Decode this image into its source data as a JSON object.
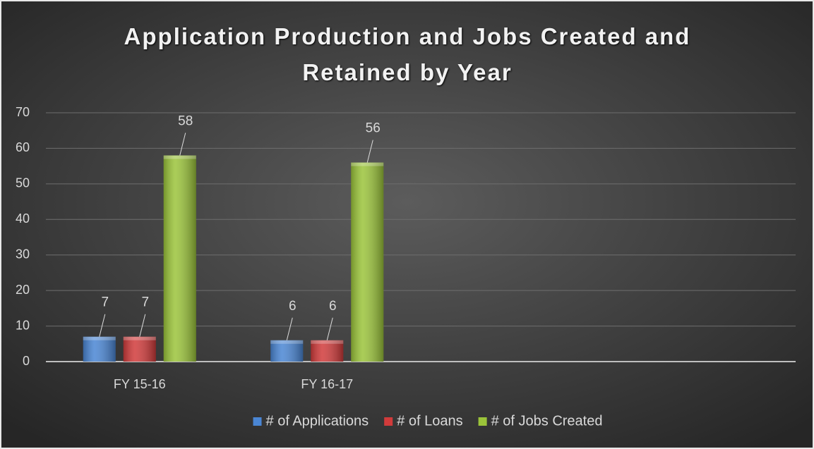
{
  "chart_data": {
    "type": "bar",
    "title": "Application Production and Jobs Created and Retained by Year",
    "categories": [
      "FY 15-16",
      "FY 16-17",
      null,
      null
    ],
    "series": [
      {
        "name": "# of Applications",
        "color": "#4a86d4",
        "values": [
          7,
          6,
          null,
          null
        ]
      },
      {
        "name": "# of Loans",
        "color": "#d13b3b",
        "values": [
          7,
          6,
          null,
          null
        ]
      },
      {
        "name": "# of Jobs Created",
        "color": "#9bc43a",
        "values": [
          58,
          56,
          null,
          null
        ]
      }
    ],
    "ylim": [
      0,
      70
    ],
    "yticks": [
      0,
      10,
      20,
      30,
      40,
      50,
      60,
      70
    ],
    "grid": true,
    "legend": "bottom"
  }
}
